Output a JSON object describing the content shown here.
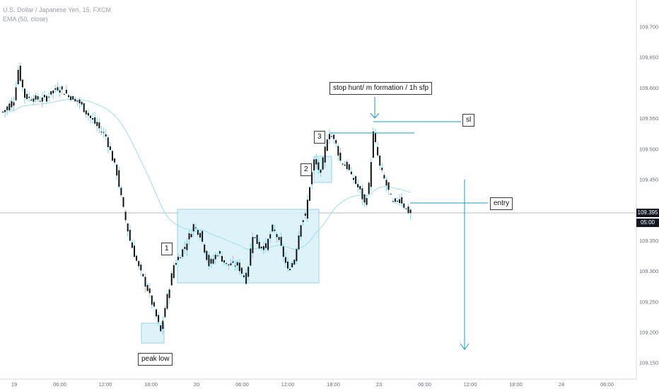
{
  "legend": {
    "symbol_line": "U.S. Dollar / Japanese Yen, 15, FXCM",
    "indicator_line": "EMA (50, close)"
  },
  "colors": {
    "candle_body": "#111111",
    "wick": "#7fd6ea",
    "ema": "#9fdeea",
    "zone_fill": "#d7f1f8",
    "zone_border": "#7cc9df",
    "annotation_line": "#1e9bbd",
    "price_line": "#b8bcc4",
    "price_tag_bg": "#131722"
  },
  "price_axis": {
    "ticks": [
      "109.700",
      "109.650",
      "109.600",
      "109.550",
      "109.500",
      "109.450",
      "109.350",
      "109.300",
      "109.250",
      "109.200",
      "109.150"
    ],
    "current_price": "109.395",
    "countdown": "05:00"
  },
  "time_axis": {
    "ticks": [
      "19",
      "06:00",
      "12:00",
      "18:00",
      "20",
      "06:00",
      "12:00",
      "18:00",
      "23",
      "06:00",
      "12:00",
      "18:00",
      "24",
      "06:00"
    ]
  },
  "annotations": {
    "stop_hunt": "stop hunt/ m formation / 1h sfp",
    "sl": "sl",
    "entry": "entry",
    "peak_low": "peak low",
    "label_1": "1",
    "label_2": "2",
    "label_3": "3"
  },
  "chart_data": {
    "type": "candlestick",
    "title": "U.S. Dollar / Japanese Yen, 15, FXCM",
    "timeframe": "15",
    "indicator": "EMA (50, close)",
    "ylim": [
      109.13,
      109.745
    ],
    "current_price": 109.395,
    "x_tick_labels": [
      "19",
      "06:00",
      "12:00",
      "18:00",
      "20",
      "06:00",
      "12:00",
      "18:00",
      "23",
      "06:00",
      "12:00",
      "18:00",
      "24",
      "06:00"
    ],
    "anchors": [
      {
        "i": 0,
        "close": 109.56
      },
      {
        "i": 5,
        "close": 109.58
      },
      {
        "i": 7,
        "close": 109.63
      },
      {
        "i": 10,
        "close": 109.585
      },
      {
        "i": 18,
        "close": 109.58
      },
      {
        "i": 25,
        "close": 109.6
      },
      {
        "i": 35,
        "close": 109.575
      },
      {
        "i": 40,
        "close": 109.55
      },
      {
        "i": 47,
        "close": 109.52
      },
      {
        "i": 52,
        "close": 109.46
      },
      {
        "i": 55,
        "close": 109.4
      },
      {
        "i": 58,
        "close": 109.35
      },
      {
        "i": 62,
        "close": 109.305
      },
      {
        "i": 66,
        "close": 109.27
      },
      {
        "i": 70,
        "close": 109.225
      },
      {
        "i": 72,
        "close": 109.2
      },
      {
        "i": 74,
        "close": 109.24
      },
      {
        "i": 78,
        "close": 109.31
      },
      {
        "i": 83,
        "close": 109.34
      },
      {
        "i": 87,
        "close": 109.375
      },
      {
        "i": 90,
        "close": 109.36
      },
      {
        "i": 94,
        "close": 109.31
      },
      {
        "i": 98,
        "close": 109.33
      },
      {
        "i": 102,
        "close": 109.31
      },
      {
        "i": 107,
        "close": 109.31
      },
      {
        "i": 111,
        "close": 109.285
      },
      {
        "i": 114,
        "close": 109.36
      },
      {
        "i": 117,
        "close": 109.34
      },
      {
        "i": 120,
        "close": 109.34
      },
      {
        "i": 123,
        "close": 109.37
      },
      {
        "i": 126,
        "close": 109.35
      },
      {
        "i": 130,
        "close": 109.3
      },
      {
        "i": 133,
        "close": 109.32
      },
      {
        "i": 136,
        "close": 109.38
      },
      {
        "i": 138,
        "close": 109.39
      },
      {
        "i": 140,
        "close": 109.44
      },
      {
        "i": 142,
        "close": 109.48
      },
      {
        "i": 145,
        "close": 109.46
      },
      {
        "i": 148,
        "close": 109.52
      },
      {
        "i": 151,
        "close": 109.52
      },
      {
        "i": 154,
        "close": 109.48
      },
      {
        "i": 157,
        "close": 109.47
      },
      {
        "i": 160,
        "close": 109.45
      },
      {
        "i": 163,
        "close": 109.43
      },
      {
        "i": 165,
        "close": 109.41
      },
      {
        "i": 167,
        "close": 109.44
      },
      {
        "i": 169,
        "close": 109.525
      },
      {
        "i": 172,
        "close": 109.47
      },
      {
        "i": 175,
        "close": 109.44
      },
      {
        "i": 178,
        "close": 109.41
      },
      {
        "i": 181,
        "close": 109.42
      },
      {
        "i": 184,
        "close": 109.4
      },
      {
        "i": 186,
        "close": 109.395
      }
    ]
  }
}
